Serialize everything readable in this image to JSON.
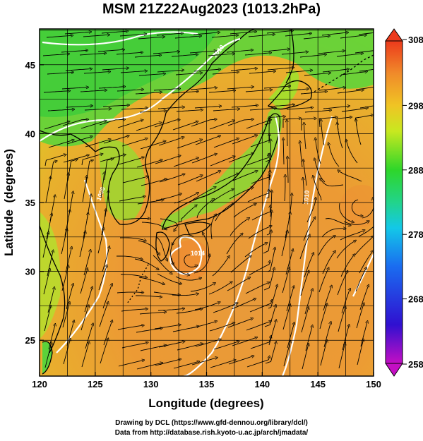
{
  "title": "MSM 21Z22Aug2023 (1013.2hPa)",
  "map": {
    "x_axis": {
      "label": "Longitude (degrees)",
      "ticks": [
        "120",
        "125",
        "130",
        "135",
        "140",
        "145",
        "150"
      ],
      "range": [
        120,
        150
      ]
    },
    "y_axis": {
      "label": "Latitude  (degrees)",
      "ticks": [
        "25",
        "30",
        "35",
        "40",
        "45"
      ],
      "range": [
        22.4,
        47.6
      ]
    },
    "gridlines": true,
    "field": "temperature (K) with streamlines"
  },
  "colorbar": {
    "ticks": [
      "308",
      "298",
      "288",
      "278",
      "268",
      "258"
    ],
    "range": [
      258,
      308
    ]
  },
  "contour_labels": [
    "1006",
    "1010",
    "1010",
    "1014"
  ],
  "footer": {
    "line1": "Drawing by DCL (https://www.gfd-dennou.org/library/dcl/)",
    "line2": "Data from http://database.rish.kyoto-u.ac.jp/arch/jmadata/"
  }
}
